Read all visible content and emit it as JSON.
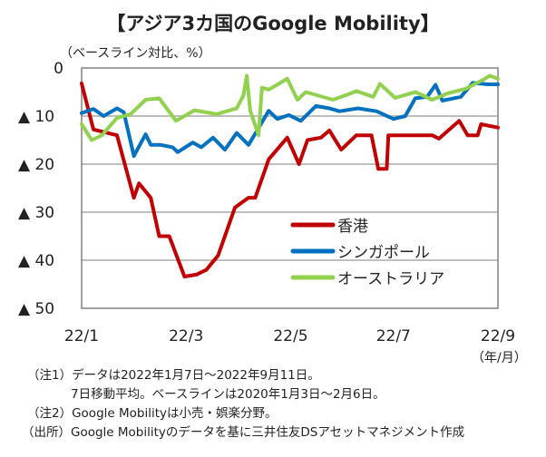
{
  "chart_data": {
    "type": "line",
    "title": "【アジア3カ国のGoogle Mobility】",
    "ylabel": "（ベースライン対比、%）",
    "xlabel": "（年/月）",
    "ylim": [
      -50,
      0
    ],
    "y_ticks": [
      {
        "value": 0,
        "label": "0"
      },
      {
        "value": -10,
        "label": "▲ 10"
      },
      {
        "value": -20,
        "label": "▲ 20"
      },
      {
        "value": -30,
        "label": "▲ 30"
      },
      {
        "value": -40,
        "label": "▲ 40"
      },
      {
        "value": -50,
        "label": "▲ 50"
      }
    ],
    "x_unit": "days since 2022-01-01",
    "xlim": [
      6,
      253
    ],
    "x_ticks": [
      {
        "value": 6,
        "label": "22/1"
      },
      {
        "value": 68,
        "label": "22/3"
      },
      {
        "value": 130,
        "label": "22/5"
      },
      {
        "value": 191,
        "label": "22/7"
      },
      {
        "value": 253,
        "label": "22/9"
      }
    ],
    "grid": true,
    "legend_position": "bottom-right",
    "series": [
      {
        "name": "香港",
        "color": "#c00000",
        "x": [
          6,
          13,
          27,
          37,
          40,
          47,
          52,
          58,
          67,
          74,
          80,
          87,
          97,
          105,
          109,
          117,
          128,
          135,
          140,
          148,
          153,
          160,
          169,
          178,
          182,
          187,
          188,
          214,
          218,
          230,
          235,
          241,
          243,
          253
        ],
        "y": [
          -3.2,
          -12.8,
          -14,
          -27,
          -24,
          -27,
          -35,
          -35,
          -43.4,
          -43,
          -42,
          -39,
          -29,
          -27,
          -27,
          -19,
          -14.5,
          -20,
          -15,
          -14.5,
          -13,
          -17,
          -14,
          -14,
          -21,
          -21,
          -14,
          -14,
          -14.7,
          -11,
          -14,
          -14,
          -11.7,
          -12.4
        ]
      },
      {
        "name": "シンガポール",
        "color": "#0070c0",
        "x": [
          6,
          13,
          19,
          27,
          31,
          37,
          44,
          47,
          53,
          60,
          63,
          72,
          77,
          84,
          91,
          98,
          105,
          117,
          122,
          129,
          136,
          145,
          153,
          159,
          170,
          181,
          191,
          198,
          204,
          211,
          216,
          220,
          231,
          238,
          247,
          253
        ],
        "y": [
          -9.4,
          -8.5,
          -10,
          -8.4,
          -9.2,
          -18.3,
          -13.8,
          -16,
          -16,
          -16.5,
          -17.5,
          -15.5,
          -16.5,
          -14.5,
          -17,
          -13.5,
          -16,
          -8.9,
          -10.6,
          -9.8,
          -11,
          -7.9,
          -8.4,
          -9,
          -8.4,
          -9,
          -10.6,
          -10,
          -6.3,
          -6,
          -3.5,
          -6.8,
          -6,
          -3.1,
          -3.4,
          -3.4
        ]
      },
      {
        "name": "オーストラリア",
        "color": "#92d050",
        "x": [
          6,
          12,
          18,
          27,
          35,
          44,
          52,
          62,
          73,
          86,
          98,
          102,
          104,
          106,
          111,
          113,
          117,
          122,
          128,
          134,
          139,
          155,
          164,
          169,
          179,
          183,
          192,
          204,
          214,
          223,
          234,
          245,
          248,
          253
        ],
        "y": [
          -11.7,
          -15,
          -14,
          -10.4,
          -9.6,
          -6.6,
          -6.3,
          -11,
          -8.8,
          -9.6,
          -8.4,
          -5.7,
          -1.6,
          -8.8,
          -14,
          -4.1,
          -4.5,
          -3.5,
          -2.2,
          -6.6,
          -5,
          -6.6,
          -5.5,
          -4.8,
          -6,
          -3.3,
          -6.2,
          -5,
          -6.6,
          -5.3,
          -4.3,
          -2.3,
          -1.6,
          -2.2
        ]
      }
    ]
  },
  "notes": [
    "（注1）データは2022年1月7日～2022年9月11日。",
    "7日移動平均。ベースラインは2020年1月3日～2月6日。",
    "（注2）Google Mobilityは小売・娯楽分野。",
    "（出所）Google Mobilityのデータを基に三井住友DSアセットマネジメント作成"
  ]
}
